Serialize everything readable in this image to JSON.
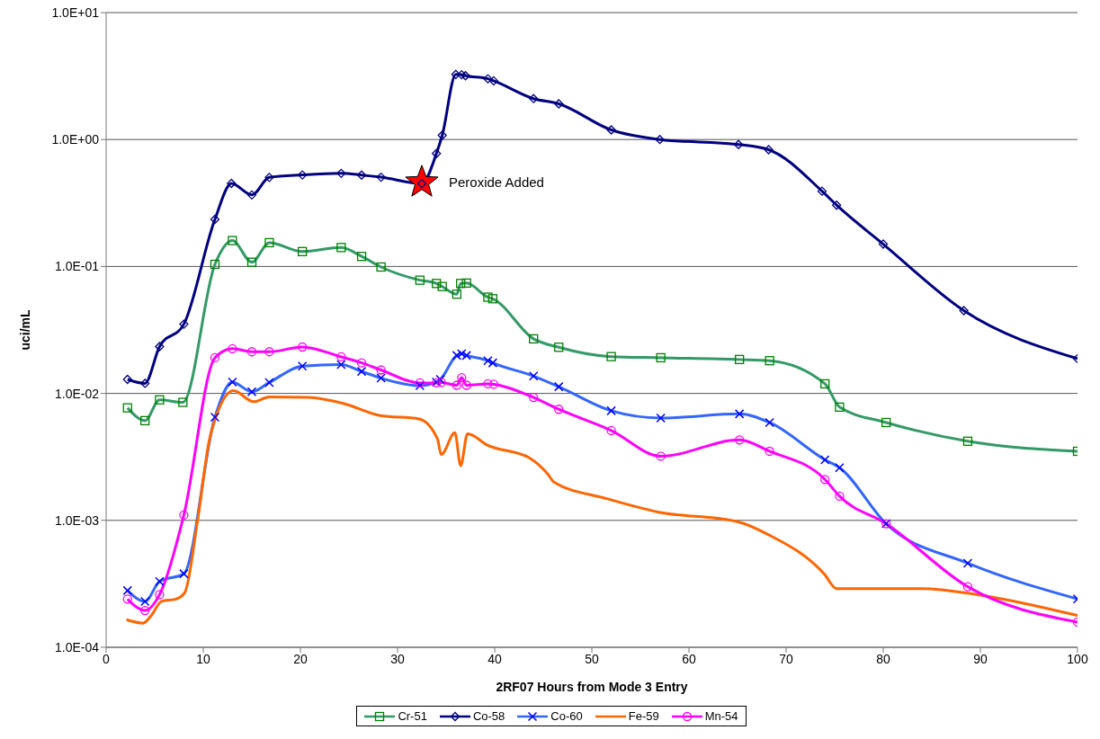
{
  "chart_data": {
    "type": "line",
    "xlabel": "2RF07 Hours from Mode 3 Entry",
    "ylabel": "uci/mL",
    "xlim": [
      0,
      100
    ],
    "xticks": [
      0,
      10,
      20,
      30,
      40,
      50,
      60,
      70,
      80,
      90,
      100
    ],
    "ylim": [
      0.0001,
      10
    ],
    "log": "y",
    "yticks": [
      {
        "value": 0.0001,
        "label": "1.0E-04"
      },
      {
        "value": 0.001,
        "label": "1.0E-03"
      },
      {
        "value": 0.01,
        "label": "1.0E-02"
      },
      {
        "value": 0.1,
        "label": "1.0E-01"
      },
      {
        "value": 1,
        "label": "1.0E+00"
      },
      {
        "value": 10,
        "label": "1.0E+01"
      }
    ],
    "grid": "y",
    "legend": "bottom",
    "annotations": [
      {
        "text": "Peroxide Added",
        "x": 32.5,
        "y": 0.46
      }
    ],
    "series": [
      {
        "name": "Cr-51",
        "color": "#339966",
        "marker": "square",
        "x": [
          2.2,
          4.0,
          5.5,
          7.9,
          11.2,
          13.0,
          15.0,
          16.8,
          20.2,
          24.2,
          26.3,
          28.3,
          32.3,
          34.0,
          34.6,
          36.1,
          36.5,
          37.1,
          39.3,
          39.8,
          44.0,
          46.6,
          52.0,
          57.1,
          65.2,
          68.3,
          74.0,
          75.5,
          80.3,
          88.7,
          100
        ],
        "values": [
          0.0077,
          0.0061,
          0.0089,
          0.0085,
          0.104,
          0.16,
          0.108,
          0.154,
          0.131,
          0.141,
          0.12,
          0.099,
          0.078,
          0.0735,
          0.0695,
          0.0605,
          0.0735,
          0.074,
          0.0573,
          0.0557,
          0.0269,
          0.0231,
          0.0195,
          0.0191,
          0.0185,
          0.0181,
          0.0119,
          0.0078,
          0.0059,
          0.0042,
          0.0035
        ]
      },
      {
        "name": "Co-58",
        "color": "#000080",
        "marker": "diamond",
        "x": [
          2.2,
          4.0,
          5.5,
          8.0,
          11.2,
          12.9,
          15.0,
          16.8,
          20.2,
          24.2,
          26.3,
          28.3,
          32.5,
          34.0,
          34.6,
          36.0,
          36.6,
          37.0,
          39.3,
          39.9,
          44.0,
          46.6,
          52.0,
          57.0,
          65.1,
          68.2,
          73.7,
          75.2,
          80.0,
          88.3,
          100
        ],
        "values": [
          0.0129,
          0.012,
          0.0234,
          0.0351,
          0.235,
          0.451,
          0.366,
          0.503,
          0.526,
          0.541,
          0.525,
          0.505,
          0.45,
          0.776,
          1.08,
          3.26,
          3.24,
          3.18,
          3.01,
          2.9,
          2.1,
          1.91,
          1.19,
          1.0,
          0.914,
          0.832,
          0.392,
          0.304,
          0.15,
          0.0449,
          0.0188
        ]
      },
      {
        "name": "Co-60",
        "color": "#3366ff",
        "marker": "cross",
        "x": [
          2.2,
          4.0,
          5.5,
          8.0,
          11.2,
          13.0,
          15.0,
          16.8,
          20.2,
          24.2,
          26.3,
          28.3,
          32.3,
          34.0,
          34.4,
          36.1,
          36.6,
          37.1,
          39.3,
          39.8,
          44.0,
          46.6,
          52.0,
          57.1,
          65.2,
          68.3,
          74.0,
          75.5,
          80.3,
          88.7,
          100
        ],
        "values": [
          0.00028,
          0.00023,
          0.00033,
          0.00038,
          0.0065,
          0.0123,
          0.0103,
          0.0122,
          0.0164,
          0.0169,
          0.0149,
          0.0132,
          0.0115,
          0.0123,
          0.0129,
          0.0199,
          0.0205,
          0.0199,
          0.0181,
          0.0174,
          0.0137,
          0.0113,
          0.0073,
          0.0064,
          0.0069,
          0.0059,
          0.003,
          0.0026,
          0.00094,
          0.00046,
          0.00024
        ]
      },
      {
        "name": "Fe-59",
        "color": "#ff6600",
        "marker": "none",
        "x": [
          2.1,
          3.8,
          4.6,
          5.7,
          7.2,
          8.1,
          9.4,
          10.6,
          11.5,
          13.1,
          15.2,
          16.8,
          20.8,
          24.5,
          28.2,
          32.2,
          34.1,
          34.5,
          35.9,
          36.5,
          37.2,
          39.3,
          43.6,
          45.5,
          46.1,
          51.3,
          56.9,
          64.9,
          68.2,
          73.9,
          75.2,
          84.0,
          89.7,
          100
        ],
        "values": [
          0.000165,
          0.000155,
          0.000176,
          0.00023,
          0.00024,
          0.00027,
          0.00098,
          0.0042,
          0.0072,
          0.0105,
          0.0086,
          0.0094,
          0.0093,
          0.0083,
          0.0067,
          0.0063,
          0.0044,
          0.0033,
          0.0049,
          0.0027,
          0.0048,
          0.0039,
          0.0031,
          0.0023,
          0.002,
          0.0015,
          0.00116,
          0.00098,
          0.00077,
          0.00038,
          0.00029,
          0.00029,
          0.00026,
          0.000178
        ]
      },
      {
        "name": "Mn-54",
        "color": "#ff00ff",
        "marker": "circle",
        "x": [
          2.2,
          4.0,
          5.5,
          8.0,
          11.2,
          13.0,
          15.0,
          16.8,
          20.2,
          24.2,
          26.3,
          28.3,
          32.3,
          34.0,
          34.5,
          36.1,
          36.6,
          37.1,
          39.3,
          39.9,
          44.0,
          46.6,
          52.0,
          57.1,
          65.2,
          68.3,
          74.0,
          75.5,
          80.3,
          88.7,
          100
        ],
        "values": [
          0.00024,
          0.000195,
          0.00026,
          0.0011,
          0.0191,
          0.0225,
          0.0213,
          0.0213,
          0.0232,
          0.0194,
          0.0174,
          0.0153,
          0.0121,
          0.0121,
          0.0122,
          0.0116,
          0.0133,
          0.0116,
          0.0119,
          0.0118,
          0.0093,
          0.0075,
          0.0051,
          0.0032,
          0.0043,
          0.0035,
          0.0021,
          0.00155,
          0.00094,
          0.0003,
          0.000158
        ]
      }
    ]
  }
}
